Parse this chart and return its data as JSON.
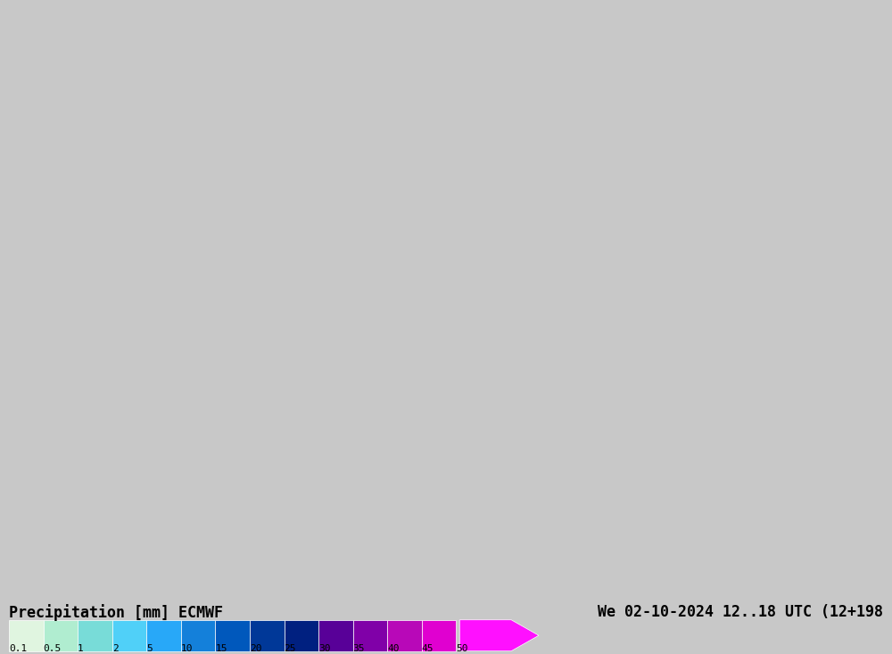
{
  "title_left": "Precipitation [mm] ECMWF",
  "title_right": "We 02-10-2024 12..18 UTC (12+198",
  "colorbar_values": [
    0.1,
    0.5,
    1,
    2,
    5,
    10,
    15,
    20,
    25,
    30,
    35,
    40,
    45,
    50
  ],
  "colorbar_colors": [
    "#e0f0e0",
    "#b0e8c8",
    "#78d4d4",
    "#50c8f0",
    "#28a0f0",
    "#1478d2",
    "#0050b4",
    "#003090",
    "#001878",
    "#500090",
    "#7800a0",
    "#b000b0",
    "#d800c8",
    "#ff00ff"
  ],
  "bg_color": "#f0f0f0",
  "map_bg": "#d4e8b0",
  "figsize": [
    10.0,
    7.33
  ],
  "dpi": 100
}
